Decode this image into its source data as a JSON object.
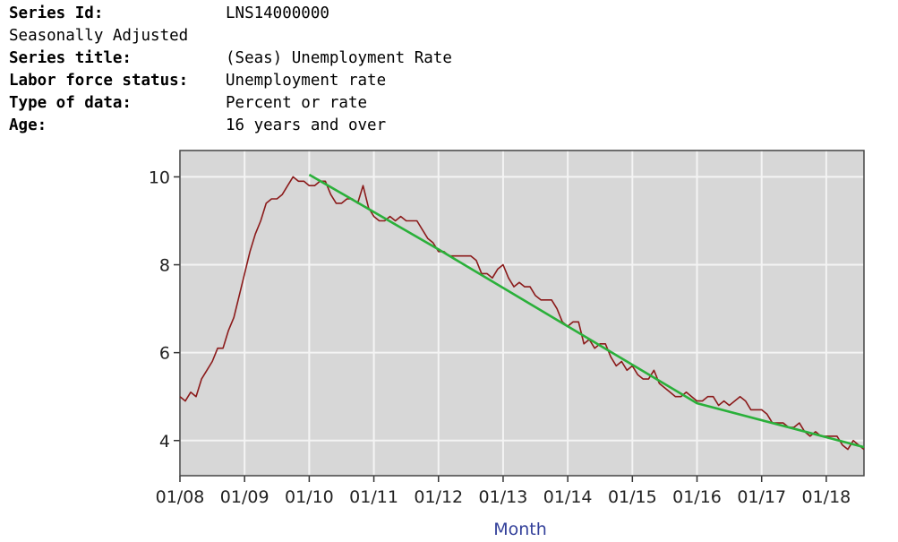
{
  "series_info": {
    "series_id_label": "Series Id:",
    "series_id_value": "LNS14000000",
    "adjustment": "Seasonally Adjusted",
    "series_title_label": "Series title:",
    "series_title_value": "(Seas) Unemployment Rate",
    "labor_force_label": "Labor force status:",
    "labor_force_value": "Unemployment rate",
    "type_label": "Type of data:",
    "type_value": "Percent or rate",
    "age_label": "Age:",
    "age_value": "16 years and over"
  },
  "colors": {
    "plot_background": "#d7d7d7",
    "grid": "#f4f4f4",
    "series_line": "#8b1a1a",
    "trend_line": "#2ab03a",
    "axis_title": "#33409a"
  },
  "chart_data": {
    "type": "line",
    "xlabel": "Month",
    "ylabel": "",
    "x_ticks": [
      "01/08",
      "01/09",
      "01/10",
      "01/11",
      "01/12",
      "01/13",
      "01/14",
      "01/15",
      "01/16",
      "01/17",
      "01/18"
    ],
    "y_ticks": [
      4,
      6,
      8,
      10
    ],
    "ylim": [
      3.2,
      10.6
    ],
    "x_start": "2008-01",
    "x_end": "2018-08",
    "grid": true,
    "legend": "none",
    "series": [
      {
        "values": [
          5.0,
          4.9,
          5.1,
          5.0,
          5.4,
          5.6,
          5.8,
          6.1,
          6.1,
          6.5,
          6.8,
          7.3,
          7.8,
          8.3,
          8.7,
          9.0,
          9.4,
          9.5,
          9.5,
          9.6,
          9.8,
          10.0,
          9.9,
          9.9,
          9.8,
          9.8,
          9.9,
          9.9,
          9.6,
          9.4,
          9.4,
          9.5,
          9.5,
          9.4,
          9.8,
          9.3,
          9.1,
          9.0,
          9.0,
          9.1,
          9.0,
          9.1,
          9.0,
          9.0,
          9.0,
          8.8,
          8.6,
          8.5,
          8.3,
          8.3,
          8.2,
          8.2,
          8.2,
          8.2,
          8.2,
          8.1,
          7.8,
          7.8,
          7.7,
          7.9,
          8.0,
          7.7,
          7.5,
          7.6,
          7.5,
          7.5,
          7.3,
          7.2,
          7.2,
          7.2,
          7.0,
          6.7,
          6.6,
          6.7,
          6.7,
          6.2,
          6.3,
          6.1,
          6.2,
          6.2,
          5.9,
          5.7,
          5.8,
          5.6,
          5.7,
          5.5,
          5.4,
          5.4,
          5.6,
          5.3,
          5.2,
          5.1,
          5.0,
          5.0,
          5.1,
          5.0,
          4.9,
          4.9,
          5.0,
          5.0,
          4.8,
          4.9,
          4.8,
          4.9,
          5.0,
          4.9,
          4.7,
          4.7,
          4.7,
          4.6,
          4.4,
          4.4,
          4.4,
          4.3,
          4.3,
          4.4,
          4.2,
          4.1,
          4.2,
          4.1,
          4.1,
          4.1,
          4.1,
          3.9,
          3.8,
          4.0,
          3.9,
          3.8
        ]
      },
      {
        "values_by_point": [
          {
            "x": "2010-01",
            "y": 10.05
          },
          {
            "x": "2012-01",
            "y": 8.35
          },
          {
            "x": "2014-01",
            "y": 6.6
          },
          {
            "x": "2016-01",
            "y": 4.85
          },
          {
            "x": "2018-08",
            "y": 3.85
          }
        ]
      }
    ]
  }
}
